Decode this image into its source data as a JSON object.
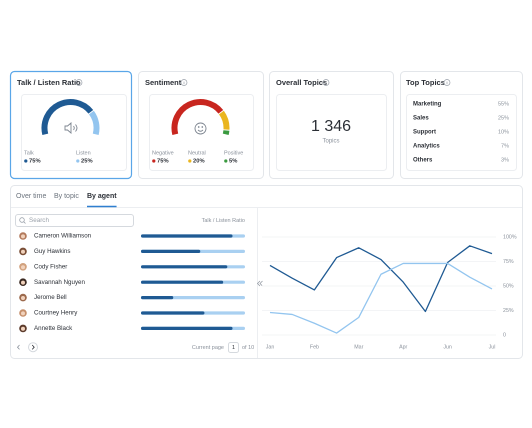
{
  "talk_listen": {
    "title": "Talk / Listen Ratio",
    "legend": [
      {
        "label": "Talk",
        "value": 75,
        "value_label": "75%",
        "color": "#1f5a93"
      },
      {
        "label": "Listen",
        "value": 25,
        "value_label": "25%",
        "color": "#93c5ef"
      }
    ]
  },
  "sentiment": {
    "title": "Sentiment",
    "legend": [
      {
        "label": "Negative",
        "value": 75,
        "value_label": "75%",
        "color": "#c8261f"
      },
      {
        "label": "Neutral",
        "value": 20,
        "value_label": "20%",
        "color": "#eab51e"
      },
      {
        "label": "Positive",
        "value": 5,
        "value_label": "5%",
        "color": "#3a9a3f"
      }
    ]
  },
  "overall_topics": {
    "title": "Overall Topics",
    "count": "1 346",
    "count_label": "Topics"
  },
  "top_topics": {
    "title": "Top Topics",
    "rows": [
      [
        "Marketing",
        "55%"
      ],
      [
        "Sales",
        "25%"
      ],
      [
        "Support",
        "10%"
      ],
      [
        "Analytics",
        "7%"
      ],
      [
        "Others",
        "3%"
      ]
    ]
  },
  "tabs": [
    "Over time",
    "By topic",
    "By agent"
  ],
  "active_tab": 2,
  "agents": {
    "search_placeholder": "Search",
    "column": "Talk / Listen Ratio",
    "rows": [
      {
        "name": "Cameron Williamson",
        "talk": 88
      },
      {
        "name": "Guy Hawkins",
        "talk": 57
      },
      {
        "name": "Cody Fisher",
        "talk": 83
      },
      {
        "name": "Savannah Nguyen",
        "talk": 79
      },
      {
        "name": "Jerome Bell",
        "talk": 31
      },
      {
        "name": "Courtney Henry",
        "talk": 61
      },
      {
        "name": "Annette Black",
        "talk": 88
      }
    ]
  },
  "pagination": {
    "label": "Current page",
    "page": "1",
    "total": "of 10"
  },
  "trend": {
    "type": "line",
    "categories": [
      "Jan",
      null,
      "Feb",
      null,
      "Mar",
      null,
      "Apr",
      null,
      "Jun",
      null,
      "Jul"
    ],
    "series": [
      {
        "color": "#1f5a93",
        "values": [
          71,
          58,
          46,
          79,
          89,
          77,
          54,
          24,
          74,
          91,
          83
        ]
      },
      {
        "color": "#93c5ef",
        "values": [
          23,
          21,
          12,
          2,
          18,
          62,
          73,
          73,
          73,
          59,
          47
        ]
      }
    ],
    "ylim": [
      0,
      100
    ],
    "yticks": [
      0,
      {
        "value": 25,
        "label": "25%"
      },
      {
        "value": 50,
        "label": "50%"
      },
      {
        "value": 75,
        "label": "75%"
      },
      {
        "value": 100,
        "label": "100%"
      }
    ]
  }
}
